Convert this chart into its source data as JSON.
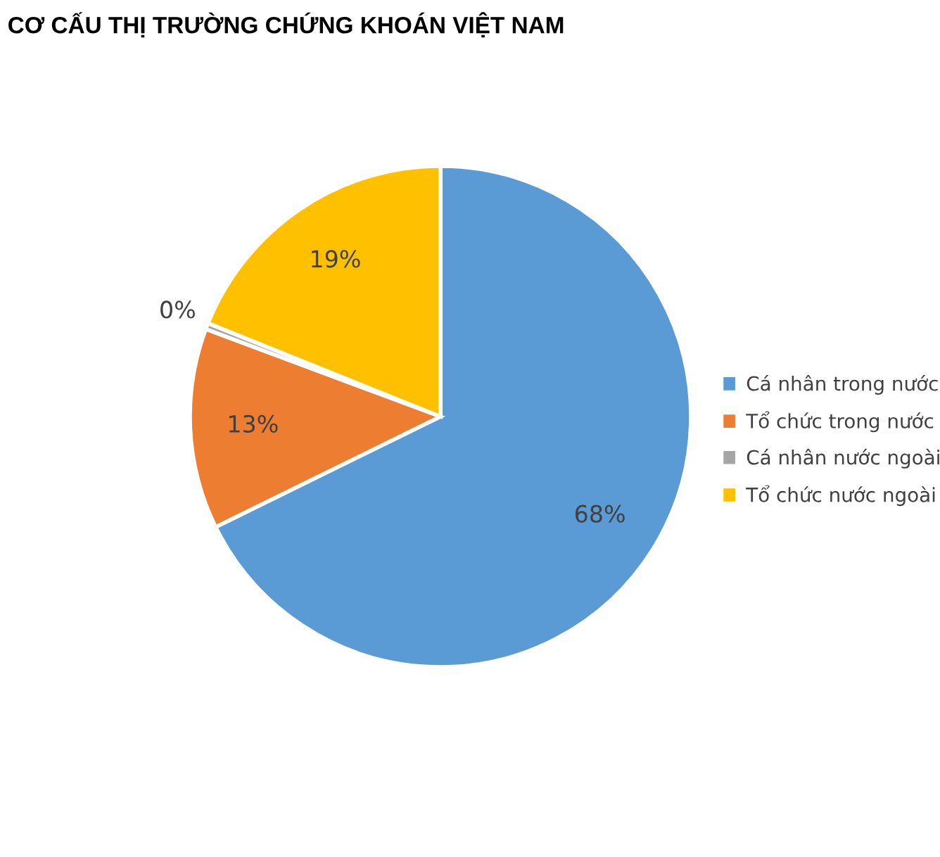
{
  "chart_data": {
    "type": "pie",
    "title": "CƠ CẤU THỊ TRƯỜNG CHỨNG KHOÁN VIỆT NAM",
    "categories": [
      "Cá nhân trong nước",
      "Tổ chức trong nước",
      "Cá nhân nước ngoài",
      "Tổ chức nước ngoài"
    ],
    "values": [
      68,
      13,
      0.4,
      19
    ],
    "value_labels": [
      "68%",
      "13%",
      "0%",
      "19%"
    ],
    "colors": [
      "#5b9bd5",
      "#ed7d31",
      "#a5a5a5",
      "#ffc000"
    ],
    "legend": "right"
  }
}
